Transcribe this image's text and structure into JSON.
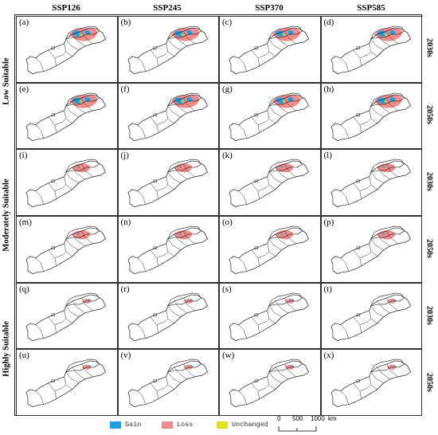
{
  "columns": [
    "SSP126",
    "SSP245",
    "SSP370",
    "SSP585"
  ],
  "row_groups": [
    "Low Suitable",
    "Moderately Suitable",
    "Highly Suitable"
  ],
  "decades": [
    "2030s",
    "2050s",
    "2030s",
    "2050s",
    "2030s",
    "2050s"
  ],
  "panels": [
    "(a)",
    "(b)",
    "(c)",
    "(d)",
    "(e)",
    "(f)",
    "(g)",
    "(h)",
    "(i)",
    "(j)",
    "(k)",
    "(l)",
    "(m)",
    "(n)",
    "(o)",
    "(p)",
    "(q)",
    "(r)",
    "(s)",
    "(t)",
    "(u)",
    "(v)",
    "(w)",
    "(x)"
  ],
  "legend": [
    {
      "label": "Gain",
      "color": "#1ea0e0"
    },
    {
      "label": "Loss",
      "color": "#f08c8c"
    },
    {
      "label": "Unchanged",
      "color": "#e0e020"
    }
  ],
  "scale": {
    "ticks": [
      "0",
      "500",
      "1000"
    ],
    "unit": "km"
  }
}
